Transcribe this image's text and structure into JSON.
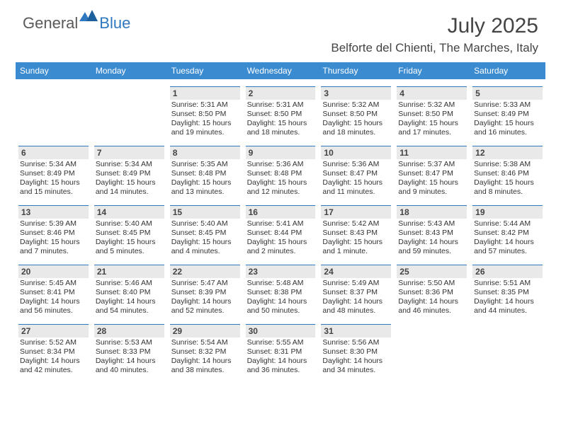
{
  "brand": {
    "general": "General",
    "blue": "Blue"
  },
  "title": {
    "month": "July 2025",
    "location": "Belforte del Chienti, The Marches, Italy"
  },
  "colors": {
    "header_bg": "#3b8bd0",
    "cell_divider": "#2f78bf",
    "daynum_bg": "#e9e9e9",
    "text": "#333333",
    "title_text": "#444444",
    "logo_gray": "#5a5a5a",
    "logo_blue": "#2f78bf",
    "page_bg": "#ffffff"
  },
  "weekdays": [
    "Sunday",
    "Monday",
    "Tuesday",
    "Wednesday",
    "Thursday",
    "Friday",
    "Saturday"
  ],
  "weeks": [
    [
      {
        "empty": true
      },
      {
        "empty": true
      },
      {
        "num": "1",
        "sunrise": "Sunrise: 5:31 AM",
        "sunset": "Sunset: 8:50 PM",
        "day1": "Daylight: 15 hours",
        "day2": "and 19 minutes."
      },
      {
        "num": "2",
        "sunrise": "Sunrise: 5:31 AM",
        "sunset": "Sunset: 8:50 PM",
        "day1": "Daylight: 15 hours",
        "day2": "and 18 minutes."
      },
      {
        "num": "3",
        "sunrise": "Sunrise: 5:32 AM",
        "sunset": "Sunset: 8:50 PM",
        "day1": "Daylight: 15 hours",
        "day2": "and 18 minutes."
      },
      {
        "num": "4",
        "sunrise": "Sunrise: 5:32 AM",
        "sunset": "Sunset: 8:50 PM",
        "day1": "Daylight: 15 hours",
        "day2": "and 17 minutes."
      },
      {
        "num": "5",
        "sunrise": "Sunrise: 5:33 AM",
        "sunset": "Sunset: 8:49 PM",
        "day1": "Daylight: 15 hours",
        "day2": "and 16 minutes."
      }
    ],
    [
      {
        "num": "6",
        "sunrise": "Sunrise: 5:34 AM",
        "sunset": "Sunset: 8:49 PM",
        "day1": "Daylight: 15 hours",
        "day2": "and 15 minutes."
      },
      {
        "num": "7",
        "sunrise": "Sunrise: 5:34 AM",
        "sunset": "Sunset: 8:49 PM",
        "day1": "Daylight: 15 hours",
        "day2": "and 14 minutes."
      },
      {
        "num": "8",
        "sunrise": "Sunrise: 5:35 AM",
        "sunset": "Sunset: 8:48 PM",
        "day1": "Daylight: 15 hours",
        "day2": "and 13 minutes."
      },
      {
        "num": "9",
        "sunrise": "Sunrise: 5:36 AM",
        "sunset": "Sunset: 8:48 PM",
        "day1": "Daylight: 15 hours",
        "day2": "and 12 minutes."
      },
      {
        "num": "10",
        "sunrise": "Sunrise: 5:36 AM",
        "sunset": "Sunset: 8:47 PM",
        "day1": "Daylight: 15 hours",
        "day2": "and 11 minutes."
      },
      {
        "num": "11",
        "sunrise": "Sunrise: 5:37 AM",
        "sunset": "Sunset: 8:47 PM",
        "day1": "Daylight: 15 hours",
        "day2": "and 9 minutes."
      },
      {
        "num": "12",
        "sunrise": "Sunrise: 5:38 AM",
        "sunset": "Sunset: 8:46 PM",
        "day1": "Daylight: 15 hours",
        "day2": "and 8 minutes."
      }
    ],
    [
      {
        "num": "13",
        "sunrise": "Sunrise: 5:39 AM",
        "sunset": "Sunset: 8:46 PM",
        "day1": "Daylight: 15 hours",
        "day2": "and 7 minutes."
      },
      {
        "num": "14",
        "sunrise": "Sunrise: 5:40 AM",
        "sunset": "Sunset: 8:45 PM",
        "day1": "Daylight: 15 hours",
        "day2": "and 5 minutes."
      },
      {
        "num": "15",
        "sunrise": "Sunrise: 5:40 AM",
        "sunset": "Sunset: 8:45 PM",
        "day1": "Daylight: 15 hours",
        "day2": "and 4 minutes."
      },
      {
        "num": "16",
        "sunrise": "Sunrise: 5:41 AM",
        "sunset": "Sunset: 8:44 PM",
        "day1": "Daylight: 15 hours",
        "day2": "and 2 minutes."
      },
      {
        "num": "17",
        "sunrise": "Sunrise: 5:42 AM",
        "sunset": "Sunset: 8:43 PM",
        "day1": "Daylight: 15 hours",
        "day2": "and 1 minute."
      },
      {
        "num": "18",
        "sunrise": "Sunrise: 5:43 AM",
        "sunset": "Sunset: 8:43 PM",
        "day1": "Daylight: 14 hours",
        "day2": "and 59 minutes."
      },
      {
        "num": "19",
        "sunrise": "Sunrise: 5:44 AM",
        "sunset": "Sunset: 8:42 PM",
        "day1": "Daylight: 14 hours",
        "day2": "and 57 minutes."
      }
    ],
    [
      {
        "num": "20",
        "sunrise": "Sunrise: 5:45 AM",
        "sunset": "Sunset: 8:41 PM",
        "day1": "Daylight: 14 hours",
        "day2": "and 56 minutes."
      },
      {
        "num": "21",
        "sunrise": "Sunrise: 5:46 AM",
        "sunset": "Sunset: 8:40 PM",
        "day1": "Daylight: 14 hours",
        "day2": "and 54 minutes."
      },
      {
        "num": "22",
        "sunrise": "Sunrise: 5:47 AM",
        "sunset": "Sunset: 8:39 PM",
        "day1": "Daylight: 14 hours",
        "day2": "and 52 minutes."
      },
      {
        "num": "23",
        "sunrise": "Sunrise: 5:48 AM",
        "sunset": "Sunset: 8:38 PM",
        "day1": "Daylight: 14 hours",
        "day2": "and 50 minutes."
      },
      {
        "num": "24",
        "sunrise": "Sunrise: 5:49 AM",
        "sunset": "Sunset: 8:37 PM",
        "day1": "Daylight: 14 hours",
        "day2": "and 48 minutes."
      },
      {
        "num": "25",
        "sunrise": "Sunrise: 5:50 AM",
        "sunset": "Sunset: 8:36 PM",
        "day1": "Daylight: 14 hours",
        "day2": "and 46 minutes."
      },
      {
        "num": "26",
        "sunrise": "Sunrise: 5:51 AM",
        "sunset": "Sunset: 8:35 PM",
        "day1": "Daylight: 14 hours",
        "day2": "and 44 minutes."
      }
    ],
    [
      {
        "num": "27",
        "sunrise": "Sunrise: 5:52 AM",
        "sunset": "Sunset: 8:34 PM",
        "day1": "Daylight: 14 hours",
        "day2": "and 42 minutes."
      },
      {
        "num": "28",
        "sunrise": "Sunrise: 5:53 AM",
        "sunset": "Sunset: 8:33 PM",
        "day1": "Daylight: 14 hours",
        "day2": "and 40 minutes."
      },
      {
        "num": "29",
        "sunrise": "Sunrise: 5:54 AM",
        "sunset": "Sunset: 8:32 PM",
        "day1": "Daylight: 14 hours",
        "day2": "and 38 minutes."
      },
      {
        "num": "30",
        "sunrise": "Sunrise: 5:55 AM",
        "sunset": "Sunset: 8:31 PM",
        "day1": "Daylight: 14 hours",
        "day2": "and 36 minutes."
      },
      {
        "num": "31",
        "sunrise": "Sunrise: 5:56 AM",
        "sunset": "Sunset: 8:30 PM",
        "day1": "Daylight: 14 hours",
        "day2": "and 34 minutes."
      },
      {
        "empty": true
      },
      {
        "empty": true
      }
    ]
  ]
}
